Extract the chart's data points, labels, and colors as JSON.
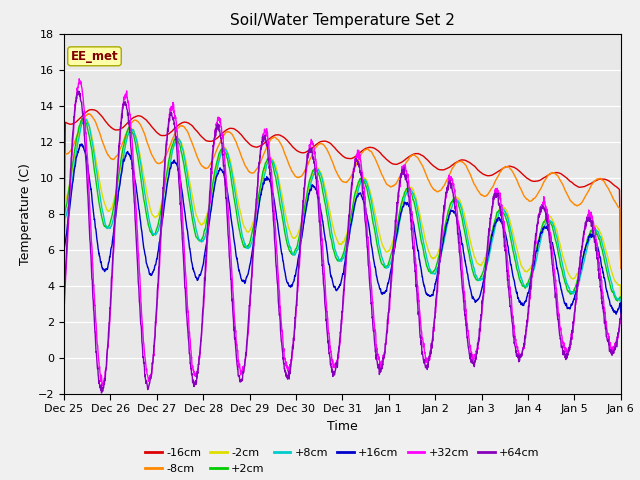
{
  "title": "Soil/Water Temperature Set 2",
  "xlabel": "Time",
  "ylabel": "Temperature (C)",
  "ylim": [
    -2,
    18
  ],
  "yticks": [
    -2,
    0,
    2,
    4,
    6,
    8,
    10,
    12,
    14,
    16,
    18
  ],
  "annotation": "EE_met",
  "plot_bg_color": "#e8e8e8",
  "fig_bg_color": "#f0f0f0",
  "series_colors": {
    "-16cm": "#dd0000",
    "-8cm": "#ff8800",
    "-2cm": "#dddd00",
    "+2cm": "#00cc00",
    "+8cm": "#00cccc",
    "+16cm": "#0000cc",
    "+32cm": "#ff00ff",
    "+64cm": "#8800bb"
  },
  "xtick_labels": [
    "Dec 25",
    "Dec 26",
    "Dec 27",
    "Dec 28",
    "Dec 29",
    "Dec 30",
    "Dec 31",
    "Jan 1",
    "Jan 2",
    "Jan 3",
    "Jan 4",
    "Jan 5",
    "Jan 6"
  ],
  "xtick_positions": [
    0,
    24,
    48,
    72,
    96,
    120,
    144,
    168,
    192,
    216,
    240,
    264,
    288
  ]
}
